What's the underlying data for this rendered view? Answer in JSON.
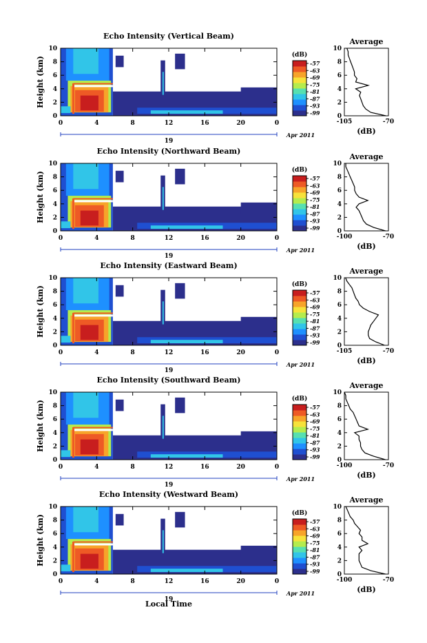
{
  "colors": {
    "colorbar": [
      "#2c2f8c",
      "#1f4fd1",
      "#1e90ff",
      "#31c5e8",
      "#57e0b0",
      "#b5ec4d",
      "#f7e23a",
      "#f7a42a",
      "#ee5a25",
      "#c81e1e"
    ],
    "background": "#ffffff",
    "axis": "#000000"
  },
  "figure": {
    "xlabel": "Local Time",
    "day_label": "19",
    "date_label": "Apr 2011"
  },
  "chart_data": [
    {
      "type": "heatmap",
      "title": "Echo Intensity (Vertical Beam)",
      "ylabel": "Height (km)",
      "x_ticks": [
        "0",
        "4",
        "8",
        "12",
        "16",
        "20",
        "0"
      ],
      "y_ticks": [
        "0",
        "2",
        "4",
        "6",
        "8",
        "10"
      ],
      "xlim": [
        0,
        24
      ],
      "ylim": [
        0,
        10
      ],
      "colorbar": {
        "label": "(dB)",
        "ticks": [
          "-57",
          "-63",
          "-69",
          "-75",
          "-81",
          "-87",
          "-93",
          "-99"
        ],
        "range": [
          -99,
          -57
        ]
      },
      "average_profile": {
        "title": "Average",
        "xlabel": "(dB)",
        "x_ticks": [
          "-105",
          "-70"
        ],
        "xlim": [
          -105,
          -70
        ],
        "y_ticks": [
          "0",
          "2",
          "4",
          "6",
          "8",
          "10"
        ],
        "height": [
          0,
          0.5,
          1,
          1.5,
          2,
          2.5,
          3,
          3.5,
          4,
          4.5,
          5,
          5.5,
          6,
          6.5,
          7,
          7.5,
          8,
          8.5,
          9,
          9.5,
          10
        ],
        "values": [
          -72,
          -84,
          -88,
          -90,
          -91,
          -92,
          -93,
          -92,
          -96,
          -86,
          -96,
          -95,
          -97,
          -97,
          -98,
          -99,
          -100,
          -101,
          -102,
          -102,
          -103
        ]
      }
    },
    {
      "type": "heatmap",
      "title": "Echo Intensity (Northward Beam)",
      "ylabel": "Height (km)",
      "x_ticks": [
        "0",
        "4",
        "8",
        "12",
        "16",
        "20",
        "0"
      ],
      "y_ticks": [
        "0",
        "2",
        "4",
        "6",
        "8",
        "10"
      ],
      "xlim": [
        0,
        24
      ],
      "ylim": [
        0,
        10
      ],
      "colorbar": {
        "label": "(dB)",
        "ticks": [
          "-57",
          "-63",
          "-69",
          "-75",
          "-81",
          "-87",
          "-93",
          "-99"
        ],
        "range": [
          -99,
          -57
        ]
      },
      "average_profile": {
        "title": "Average",
        "xlabel": "(dB)",
        "x_ticks": [
          "-100",
          "-70"
        ],
        "xlim": [
          -100,
          -70
        ],
        "y_ticks": [
          "0",
          "2",
          "4",
          "6",
          "8",
          "10"
        ],
        "height": [
          0,
          0.5,
          1,
          1.5,
          2,
          2.5,
          3,
          3.5,
          4,
          4.5,
          5,
          5.5,
          6,
          6.5,
          7,
          7.5,
          8,
          8.5,
          9,
          9.5,
          10
        ],
        "values": [
          -72,
          -80,
          -85,
          -87,
          -88,
          -89,
          -90,
          -92,
          -90,
          -84,
          -90,
          -92,
          -93,
          -93,
          -94,
          -95,
          -96,
          -97,
          -98,
          -99,
          -99
        ]
      }
    },
    {
      "type": "heatmap",
      "title": "Echo Intensity (Eastward Beam)",
      "ylabel": "Height (km)",
      "x_ticks": [
        "0",
        "4",
        "8",
        "12",
        "16",
        "20",
        "0"
      ],
      "y_ticks": [
        "0",
        "2",
        "4",
        "6",
        "8",
        "10"
      ],
      "xlim": [
        0,
        24
      ],
      "ylim": [
        0,
        10
      ],
      "colorbar": {
        "label": "(dB)",
        "ticks": [
          "-57",
          "-63",
          "-69",
          "-75",
          "-81",
          "-87",
          "-93",
          "-99"
        ],
        "range": [
          -99,
          -57
        ]
      },
      "average_profile": {
        "title": "Average",
        "xlabel": "(dB)",
        "x_ticks": [
          "-105",
          "-70"
        ],
        "xlim": [
          -105,
          -70
        ],
        "y_ticks": [
          "0",
          "2",
          "4",
          "6",
          "8",
          "10"
        ],
        "height": [
          0,
          0.5,
          1,
          1.5,
          2,
          2.5,
          3,
          3.5,
          4,
          4.5,
          5,
          5.5,
          6,
          6.5,
          7,
          7.5,
          8,
          8.5,
          9,
          9.5,
          10
        ],
        "values": [
          -73,
          -80,
          -85,
          -86,
          -86,
          -85,
          -84,
          -82,
          -80,
          -78,
          -85,
          -90,
          -93,
          -94,
          -96,
          -97,
          -98,
          -99,
          -101,
          -103,
          -104
        ]
      }
    },
    {
      "type": "heatmap",
      "title": "Echo Intensity (Southward Beam)",
      "ylabel": "Height (km)",
      "x_ticks": [
        "0",
        "4",
        "8",
        "12",
        "16",
        "20",
        "0"
      ],
      "y_ticks": [
        "0",
        "2",
        "4",
        "6",
        "8",
        "10"
      ],
      "xlim": [
        0,
        24
      ],
      "ylim": [
        0,
        10
      ],
      "colorbar": {
        "label": "(dB)",
        "ticks": [
          "-57",
          "-63",
          "-69",
          "-75",
          "-81",
          "-87",
          "-93",
          "-99"
        ],
        "range": [
          -99,
          -57
        ]
      },
      "average_profile": {
        "title": "Average",
        "xlabel": "(dB)",
        "x_ticks": [
          "-100",
          "-70"
        ],
        "xlim": [
          -100,
          -70
        ],
        "y_ticks": [
          "0",
          "2",
          "4",
          "6",
          "8",
          "10"
        ],
        "height": [
          0,
          0.5,
          1,
          1.5,
          2,
          2.5,
          3,
          3.5,
          4,
          4.5,
          5,
          5.5,
          6,
          6.5,
          7,
          7.5,
          8,
          8.5,
          9,
          9.5,
          10
        ],
        "values": [
          -72,
          -80,
          -86,
          -88,
          -89,
          -89,
          -90,
          -90,
          -93,
          -84,
          -90,
          -91,
          -92,
          -93,
          -94,
          -96,
          -97,
          -98,
          -99,
          -99,
          -100
        ]
      }
    },
    {
      "type": "heatmap",
      "title": "Echo Intensity (Westward Beam)",
      "ylabel": "Height (km)",
      "x_ticks": [
        "0",
        "4",
        "8",
        "12",
        "16",
        "20",
        "0"
      ],
      "y_ticks": [
        "0",
        "2",
        "4",
        "6",
        "8",
        "10"
      ],
      "xlim": [
        0,
        24
      ],
      "ylim": [
        0,
        10
      ],
      "colorbar": {
        "label": "(dB)",
        "ticks": [
          "-57",
          "-63",
          "-69",
          "-75",
          "-81",
          "-87",
          "-93",
          "-99"
        ],
        "range": [
          -99,
          -57
        ]
      },
      "average_profile": {
        "title": "Average",
        "xlabel": "(dB)",
        "x_ticks": [
          "-100",
          "-70"
        ],
        "xlim": [
          -100,
          -70
        ],
        "y_ticks": [
          "0",
          "2",
          "4",
          "6",
          "8",
          "10"
        ],
        "height": [
          0,
          0.5,
          1,
          1.5,
          2,
          2.5,
          3,
          3.5,
          4,
          4.5,
          5,
          5.5,
          6,
          6.5,
          7,
          7.5,
          8,
          8.5,
          9,
          9.5,
          10
        ],
        "values": [
          -72,
          -82,
          -88,
          -89,
          -90,
          -90,
          -90,
          -88,
          -90,
          -84,
          -88,
          -88,
          -90,
          -89,
          -91,
          -93,
          -94,
          -96,
          -97,
          -98,
          -99
        ]
      }
    }
  ]
}
